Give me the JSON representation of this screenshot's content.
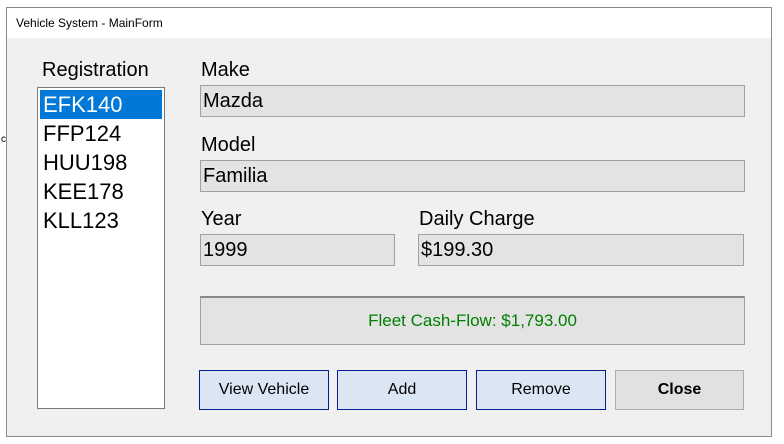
{
  "window": {
    "title": "Vehicle System - MainForm"
  },
  "registration": {
    "label": "Registration",
    "items": [
      "EFK140",
      "FFP124",
      "HUU198",
      "KEE178",
      "KLL123"
    ],
    "selected_index": 0
  },
  "make": {
    "label": "Make",
    "value": "Mazda"
  },
  "model": {
    "label": "Model",
    "value": "Familia"
  },
  "year": {
    "label": "Year",
    "value": "1999"
  },
  "daily_charge": {
    "label": "Daily Charge",
    "value": "$199.30"
  },
  "cashflow": {
    "text": "Fleet Cash-Flow: $1,793.00"
  },
  "buttons": {
    "view": "View Vehicle",
    "add": "Add",
    "remove": "Remove",
    "close": "Close"
  },
  "edge_mark": "c",
  "colors": {
    "selection": "#0078d7",
    "cashflow_text": "#008000",
    "button_border": "#0a1f8f",
    "button_fill": "#dbe6f4"
  }
}
